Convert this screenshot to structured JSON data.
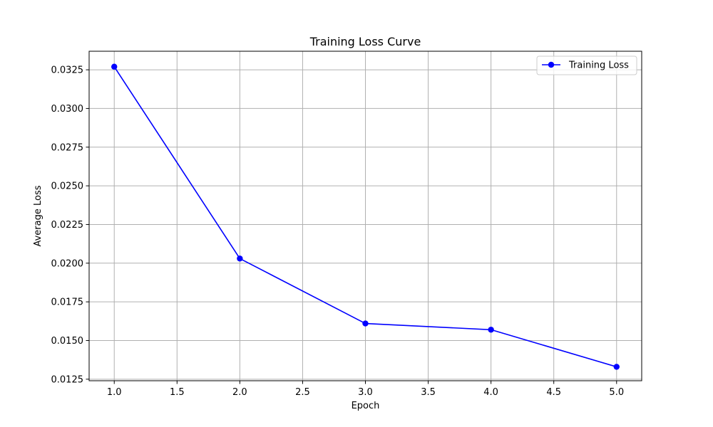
{
  "chart_data": {
    "type": "line",
    "title": "Training Loss Curve",
    "xlabel": "Epoch",
    "ylabel": "Average Loss",
    "xlim": [
      0.8,
      5.2
    ],
    "ylim": [
      0.0124,
      0.0337
    ],
    "xticks": [
      1.0,
      1.5,
      2.0,
      2.5,
      3.0,
      3.5,
      4.0,
      4.5,
      5.0
    ],
    "xtick_labels": [
      "1.0",
      "1.5",
      "2.0",
      "2.5",
      "3.0",
      "3.5",
      "4.0",
      "4.5",
      "5.0"
    ],
    "yticks": [
      0.0125,
      0.015,
      0.0175,
      0.02,
      0.0225,
      0.025,
      0.0275,
      0.03,
      0.0325
    ],
    "ytick_labels": [
      "0.0125",
      "0.0150",
      "0.0175",
      "0.0200",
      "0.0225",
      "0.0250",
      "0.0275",
      "0.0300",
      "0.0325"
    ],
    "grid": true,
    "legend_position": "upper right",
    "series": [
      {
        "name": "Training Loss",
        "color": "#0000ff",
        "marker": "circle",
        "x": [
          1,
          2,
          3,
          4,
          5
        ],
        "y": [
          0.0327,
          0.0203,
          0.0161,
          0.0157,
          0.0133
        ]
      }
    ]
  }
}
